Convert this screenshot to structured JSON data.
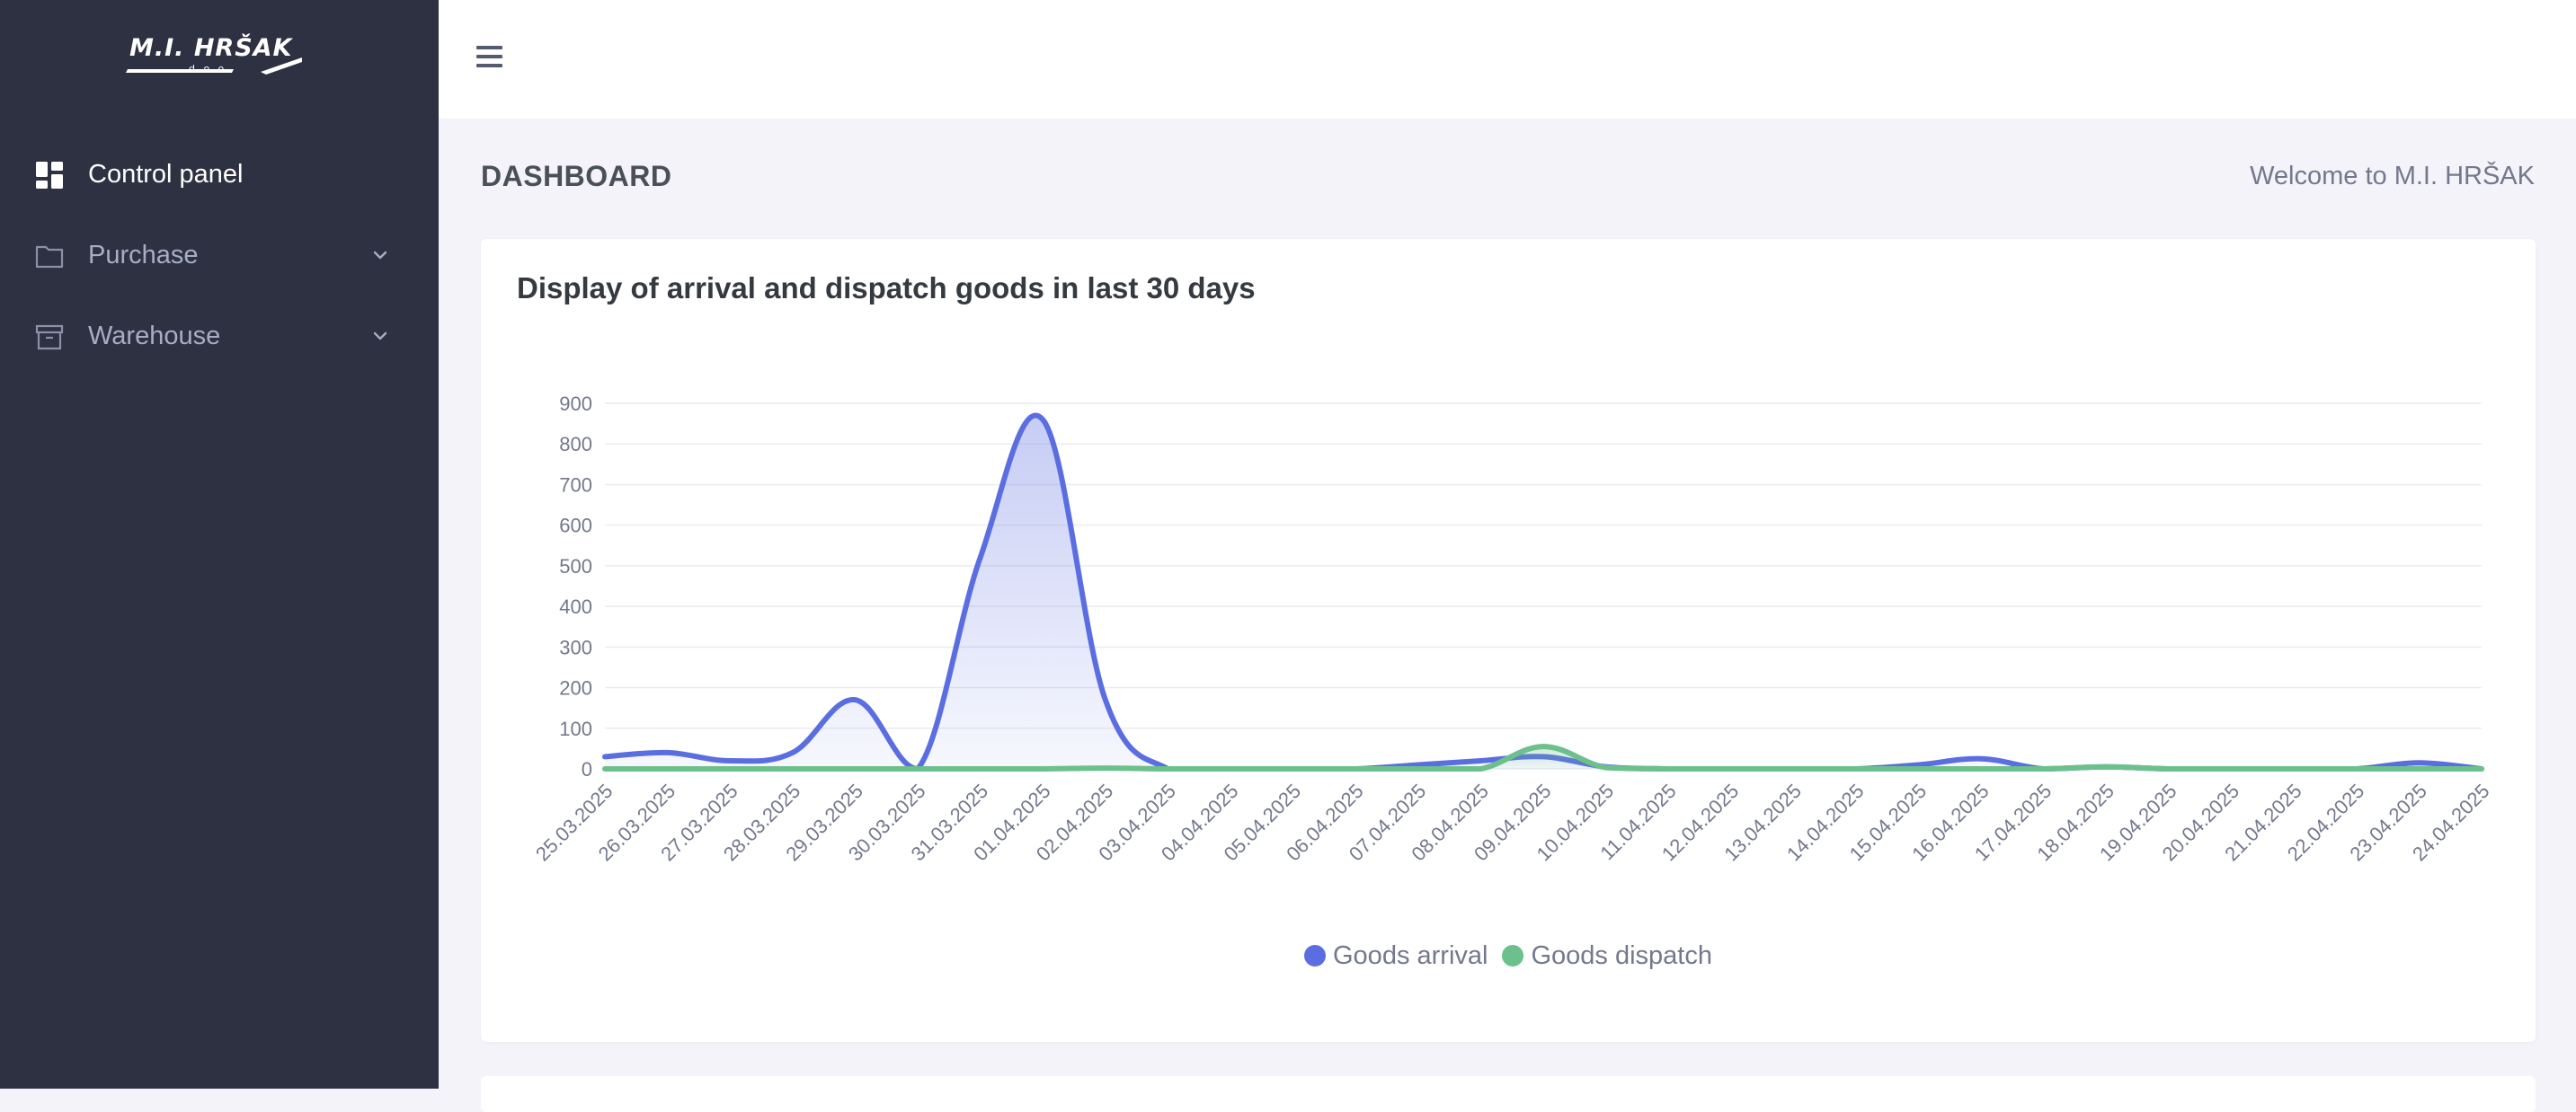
{
  "app": {
    "logo_text": "M.I. HRŠAK",
    "logo_sub": "d.o.o."
  },
  "sidebar": {
    "items": [
      {
        "label": "Control panel",
        "icon": "dashboard-icon"
      },
      {
        "label": "Purchase",
        "icon": "folder-icon"
      },
      {
        "label": "Warehouse",
        "icon": "archive-box-icon"
      }
    ]
  },
  "header": {
    "title": "DASHBOARD",
    "welcome": "Welcome to M.I. HRŠAK"
  },
  "colors": {
    "sidebar_bg": "#2d3142",
    "arrival": "#5b6ee1",
    "dispatch": "#6cc08b"
  },
  "chart_data": {
    "type": "area",
    "title": "Display of arrival and dispatch goods in last 30 days",
    "xlabel": "",
    "ylabel": "",
    "ylim": [
      0,
      900
    ],
    "yticks": [
      0,
      100,
      200,
      300,
      400,
      500,
      600,
      700,
      800,
      900
    ],
    "grid": true,
    "legend_position": "bottom",
    "categories": [
      "25.03.2025",
      "26.03.2025",
      "27.03.2025",
      "28.03.2025",
      "29.03.2025",
      "30.03.2025",
      "31.03.2025",
      "01.04.2025",
      "02.04.2025",
      "03.04.2025",
      "04.04.2025",
      "05.04.2025",
      "06.04.2025",
      "07.04.2025",
      "08.04.2025",
      "09.04.2025",
      "10.04.2025",
      "11.04.2025",
      "12.04.2025",
      "13.04.2025",
      "14.04.2025",
      "15.04.2025",
      "16.04.2025",
      "17.04.2025",
      "18.04.2025",
      "19.04.2025",
      "20.04.2025",
      "21.04.2025",
      "22.04.2025",
      "23.04.2025",
      "24.04.2025"
    ],
    "series": [
      {
        "name": "Goods arrival",
        "values": [
          30,
          40,
          20,
          40,
          170,
          0,
          520,
          860,
          170,
          0,
          0,
          0,
          0,
          10,
          20,
          30,
          5,
          0,
          0,
          0,
          0,
          10,
          25,
          0,
          5,
          0,
          0,
          0,
          0,
          15,
          0
        ]
      },
      {
        "name": "Goods dispatch",
        "values": [
          0,
          0,
          0,
          0,
          0,
          0,
          0,
          0,
          2,
          0,
          0,
          0,
          0,
          0,
          0,
          55,
          3,
          0,
          0,
          0,
          0,
          0,
          0,
          0,
          5,
          0,
          0,
          0,
          0,
          0,
          0
        ]
      }
    ]
  }
}
